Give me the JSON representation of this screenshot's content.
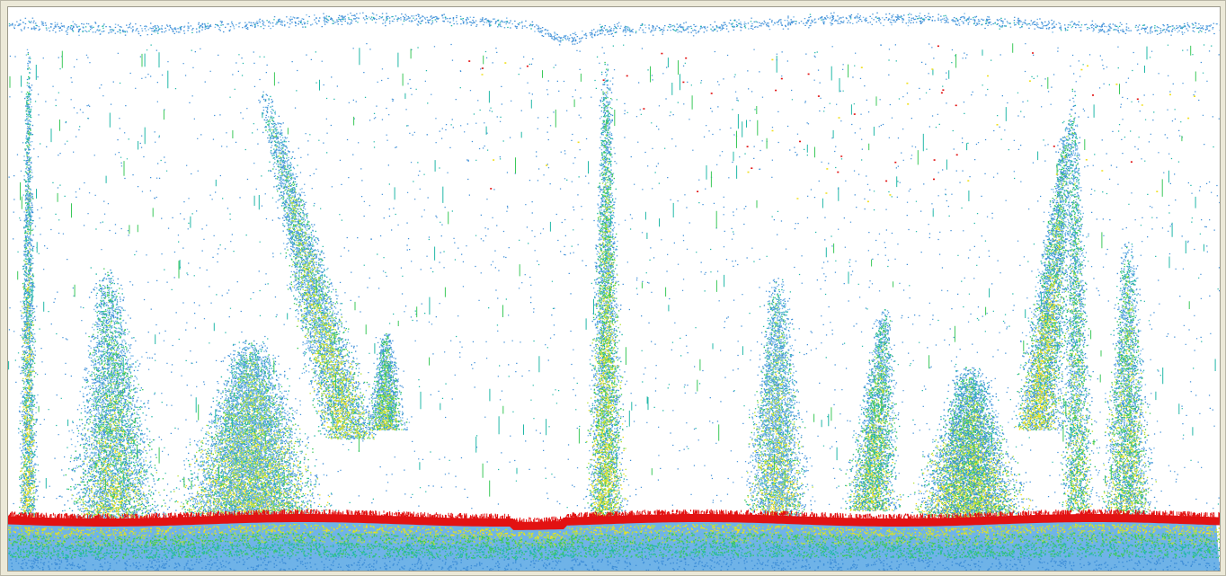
{
  "image": {
    "kind": "sonar echogram",
    "background_color": "#ffffff",
    "frame_color": "#ece9d8",
    "palette": {
      "weak": "#3f8fd8",
      "light": "#6fb3e8",
      "medium": "#22b8a8",
      "moderate": "#3cc95a",
      "strong": "#b8e23a",
      "very_strong": "#f0e020",
      "bottom": "#e21212"
    }
  }
}
